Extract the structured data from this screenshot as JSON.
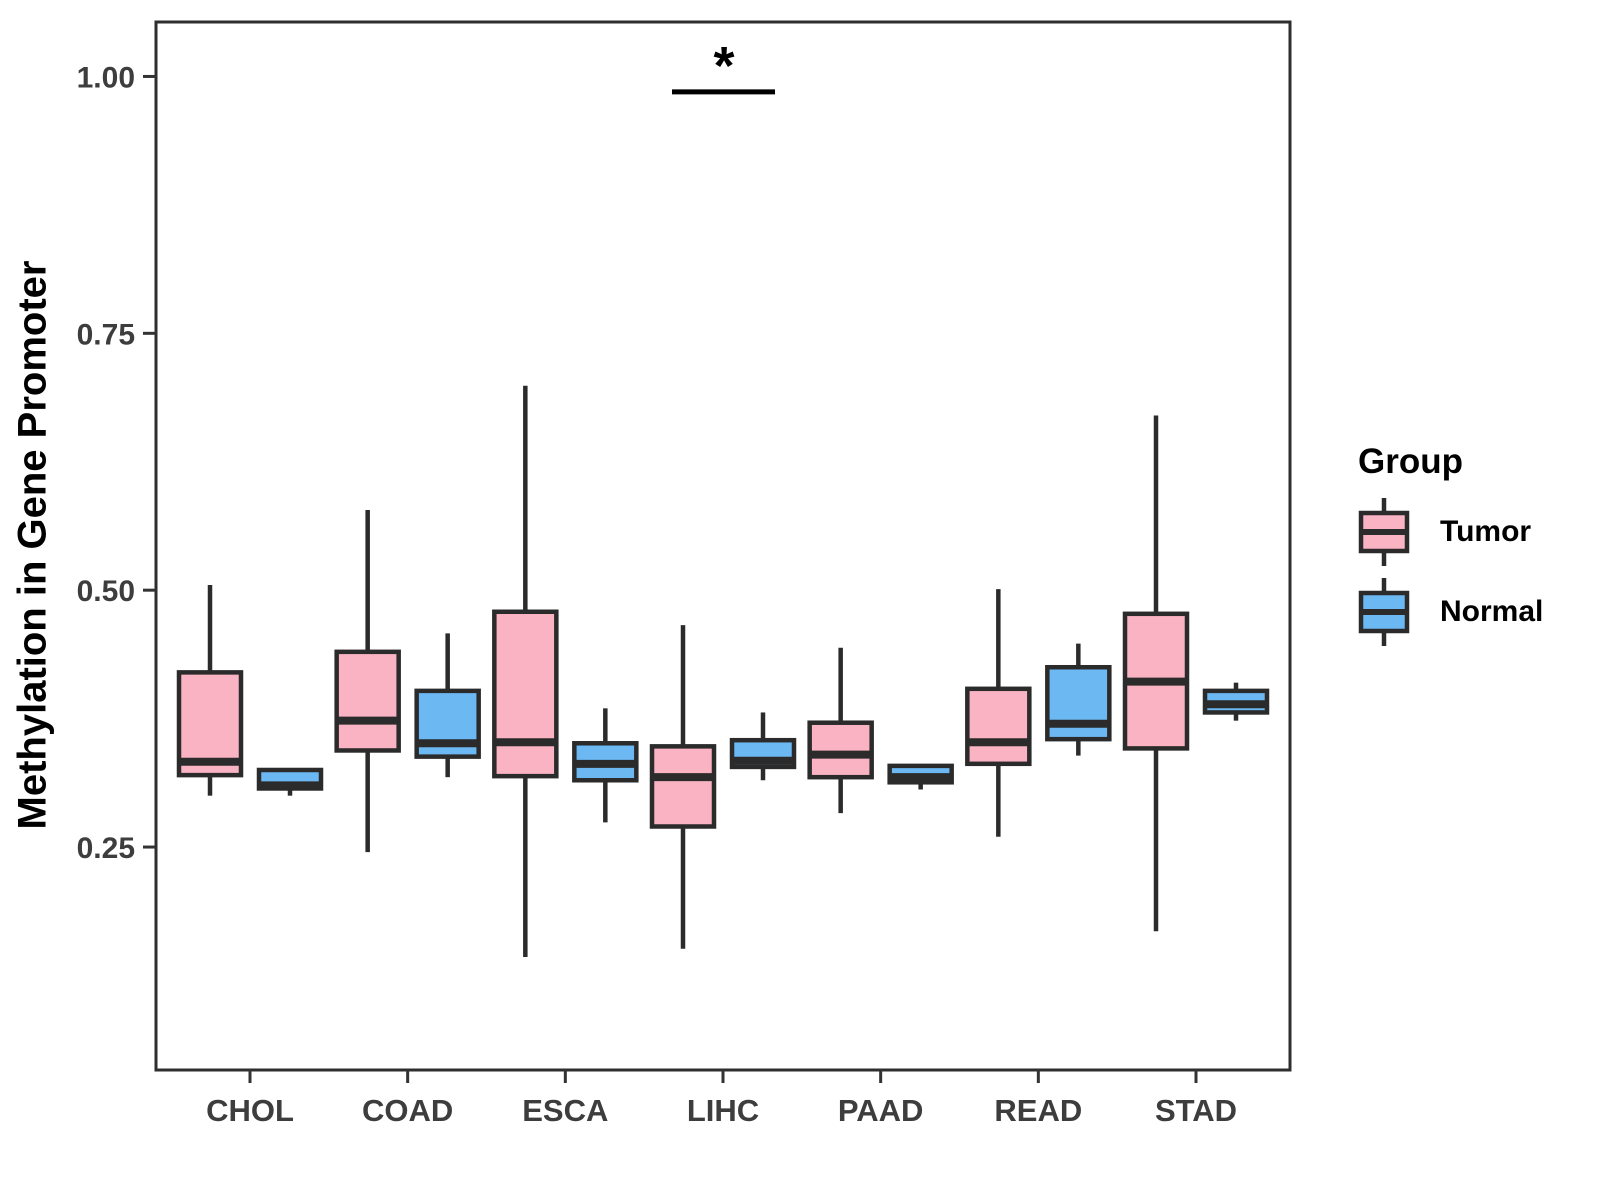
{
  "colors": {
    "background": "#FFFFFF",
    "panel_border": "#2E2E2E",
    "box_border": "#2B2B2B",
    "axis_text": "#3D3D3D",
    "tick": "#333333",
    "tumor_pink": "#F9B3C3",
    "normal_blue": "#6CB8F3"
  },
  "legend": {
    "title": "Group",
    "items": [
      {
        "label": "Tumor",
        "color": "#F9B3C3"
      },
      {
        "label": "Normal",
        "color": "#6CB8F3"
      }
    ]
  },
  "chart_data": {
    "type": "grouped_boxplot",
    "title": "",
    "xlabel": "",
    "ylabel": "Methylation in Gene Promoter",
    "ylim": [
      0.033,
      1.053
    ],
    "grid": false,
    "legend_position": "right",
    "yticks": [
      {
        "value": 0.25,
        "label": "0.25"
      },
      {
        "value": 0.5,
        "label": "0.50"
      },
      {
        "value": 0.75,
        "label": "0.75"
      },
      {
        "value": 1.0,
        "label": "1.00"
      }
    ],
    "categories": [
      "CHOL",
      "COAD",
      "ESCA",
      "LIHC",
      "PAAD",
      "READ",
      "STAD"
    ],
    "series": [
      {
        "name": "Tumor",
        "color": "#F9B3C3",
        "boxes": [
          {
            "whislo": 0.3,
            "q1": 0.32,
            "med": 0.333,
            "q3": 0.42,
            "whishi": 0.505
          },
          {
            "whislo": 0.245,
            "q1": 0.344,
            "med": 0.373,
            "q3": 0.44,
            "whishi": 0.578
          },
          {
            "whislo": 0.143,
            "q1": 0.319,
            "med": 0.352,
            "q3": 0.479,
            "whishi": 0.699
          },
          {
            "whislo": 0.151,
            "q1": 0.27,
            "med": 0.318,
            "q3": 0.348,
            "whishi": 0.466
          },
          {
            "whislo": 0.283,
            "q1": 0.318,
            "med": 0.34,
            "q3": 0.371,
            "whishi": 0.444
          },
          {
            "whislo": 0.26,
            "q1": 0.331,
            "med": 0.352,
            "q3": 0.404,
            "whishi": 0.501
          },
          {
            "whislo": 0.168,
            "q1": 0.346,
            "med": 0.411,
            "q3": 0.477,
            "whishi": 0.67
          }
        ]
      },
      {
        "name": "Normal",
        "color": "#6CB8F3",
        "boxes": [
          {
            "whislo": 0.3,
            "q1": 0.307,
            "med": 0.31,
            "q3": 0.325,
            "whishi": 0.325
          },
          {
            "whislo": 0.318,
            "q1": 0.338,
            "med": 0.351,
            "q3": 0.402,
            "whishi": 0.458
          },
          {
            "whislo": 0.274,
            "q1": 0.315,
            "med": 0.331,
            "q3": 0.351,
            "whishi": 0.385
          },
          {
            "whislo": 0.315,
            "q1": 0.328,
            "med": 0.334,
            "q3": 0.354,
            "whishi": 0.381
          },
          {
            "whislo": 0.306,
            "q1": 0.313,
            "med": 0.318,
            "q3": 0.329,
            "whishi": 0.329
          },
          {
            "whislo": 0.339,
            "q1": 0.355,
            "med": 0.37,
            "q3": 0.425,
            "whishi": 0.448
          },
          {
            "whislo": 0.373,
            "q1": 0.381,
            "med": 0.389,
            "q3": 0.402,
            "whishi": 0.41
          }
        ]
      }
    ],
    "significance": [
      {
        "category": "LIHC",
        "label": "*",
        "y": 0.985
      }
    ]
  }
}
